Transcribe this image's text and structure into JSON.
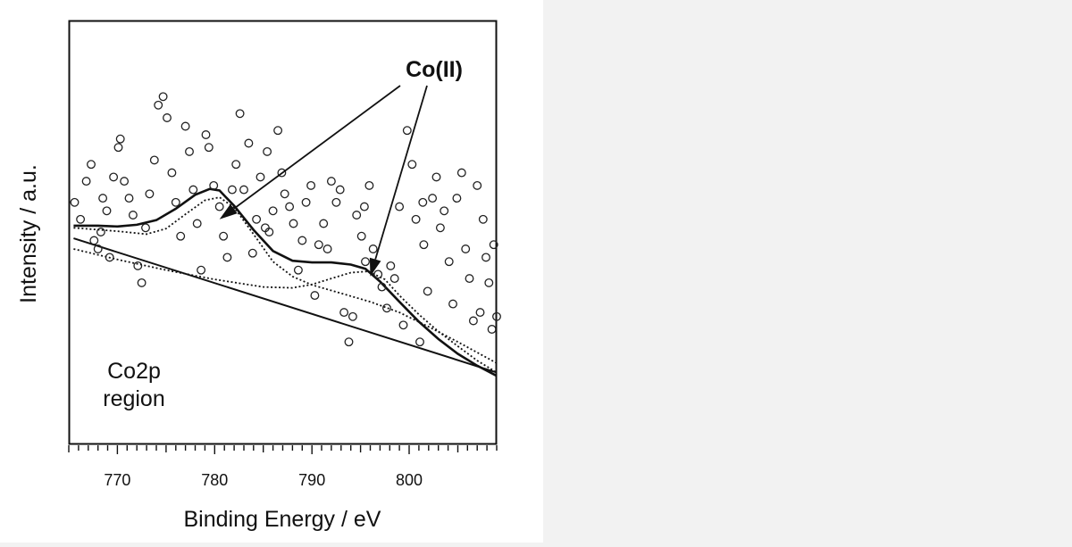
{
  "chart_data": {
    "type": "scatter",
    "title": "",
    "xlabel": "Binding Energy / eV",
    "ylabel": "Intensity / a.u.",
    "xlim": [
      765,
      809
    ],
    "ylim": [
      0,
      100
    ],
    "x_ticks": [
      770,
      780,
      790,
      800
    ],
    "x_tick_labels": [
      "770",
      "780",
      "790",
      "800"
    ],
    "region_label": [
      "Co2p",
      "region"
    ],
    "annotation": {
      "text": "Co(II)",
      "points_to": [
        [
          780.5,
          53
        ],
        [
          796,
          39.5
        ]
      ]
    },
    "series": [
      {
        "name": "measured data",
        "style": "open-circles",
        "points": [
          [
            765.6,
            57
          ],
          [
            766.2,
            53
          ],
          [
            766.8,
            62
          ],
          [
            767.3,
            66
          ],
          [
            767.6,
            48
          ],
          [
            768,
            46
          ],
          [
            768.5,
            58
          ],
          [
            768.9,
            55
          ],
          [
            769.2,
            44
          ],
          [
            769.6,
            63
          ],
          [
            770.1,
            70
          ],
          [
            770.3,
            72
          ],
          [
            770.7,
            62
          ],
          [
            771.2,
            58
          ],
          [
            771.6,
            54
          ],
          [
            772.1,
            42
          ],
          [
            772.5,
            38
          ],
          [
            772.9,
            51
          ],
          [
            773.3,
            59
          ],
          [
            773.8,
            67
          ],
          [
            774.2,
            80
          ],
          [
            774.7,
            82
          ],
          [
            775.1,
            77
          ],
          [
            775.6,
            64
          ],
          [
            776,
            57
          ],
          [
            776.5,
            49
          ],
          [
            777,
            75
          ],
          [
            777.4,
            69
          ],
          [
            777.8,
            60
          ],
          [
            778.2,
            52
          ],
          [
            778.6,
            41
          ],
          [
            779.1,
            73
          ],
          [
            779.4,
            70
          ],
          [
            779.9,
            61
          ],
          [
            780.5,
            56
          ],
          [
            780.9,
            49
          ],
          [
            781.3,
            44
          ],
          [
            781.8,
            60
          ],
          [
            782.2,
            66
          ],
          [
            782.6,
            78
          ],
          [
            783,
            60
          ],
          [
            783.5,
            71
          ],
          [
            783.9,
            45
          ],
          [
            784.3,
            53
          ],
          [
            784.7,
            63
          ],
          [
            785.2,
            51
          ],
          [
            785.6,
            50
          ],
          [
            786,
            55
          ],
          [
            786.5,
            74
          ],
          [
            786.9,
            64
          ],
          [
            787.2,
            59
          ],
          [
            787.7,
            56
          ],
          [
            788.1,
            52
          ],
          [
            788.6,
            41
          ],
          [
            789,
            48
          ],
          [
            789.4,
            57
          ],
          [
            789.9,
            61
          ],
          [
            790.3,
            35
          ],
          [
            790.7,
            47
          ],
          [
            791.2,
            52
          ],
          [
            791.6,
            46
          ],
          [
            792,
            62
          ],
          [
            792.5,
            57
          ],
          [
            792.9,
            60
          ],
          [
            793.3,
            31
          ],
          [
            793.8,
            24
          ],
          [
            794.2,
            30
          ],
          [
            794.6,
            54
          ],
          [
            795.1,
            49
          ],
          [
            795.5,
            43
          ],
          [
            795.9,
            61
          ],
          [
            796.3,
            46
          ],
          [
            796.8,
            40
          ],
          [
            797.2,
            37
          ],
          [
            797.7,
            32
          ],
          [
            798.1,
            42
          ],
          [
            798.5,
            39
          ],
          [
            799,
            56
          ],
          [
            799.4,
            28
          ],
          [
            799.8,
            74
          ],
          [
            800.3,
            66
          ],
          [
            800.7,
            53
          ],
          [
            801.1,
            24
          ],
          [
            801.5,
            47
          ],
          [
            801.9,
            36
          ],
          [
            802.4,
            58
          ],
          [
            802.8,
            63
          ],
          [
            803.2,
            51
          ],
          [
            803.6,
            55
          ],
          [
            804.1,
            43
          ],
          [
            804.5,
            33
          ],
          [
            804.9,
            58
          ],
          [
            805.4,
            64
          ],
          [
            805.8,
            46
          ],
          [
            806.2,
            39
          ],
          [
            806.6,
            29
          ],
          [
            807,
            61
          ],
          [
            807.3,
            31
          ],
          [
            807.6,
            53
          ],
          [
            807.9,
            44
          ],
          [
            808.2,
            38
          ],
          [
            808.5,
            27
          ],
          [
            808.7,
            47
          ],
          [
            809,
            30
          ],
          [
            768.3,
            50
          ],
          [
            785.4,
            69
          ],
          [
            795.4,
            56
          ],
          [
            801.4,
            57
          ]
        ]
      },
      {
        "name": "fitted envelope",
        "style": "solid-thick",
        "points": [
          [
            765.5,
            51.5
          ],
          [
            768,
            51.5
          ],
          [
            770,
            51.3
          ],
          [
            772,
            51.7
          ],
          [
            774,
            52.8
          ],
          [
            776,
            55.5
          ],
          [
            778,
            58.8
          ],
          [
            779.5,
            60.2
          ],
          [
            780.5,
            59.8
          ],
          [
            782,
            56.2
          ],
          [
            784,
            50.5
          ],
          [
            786,
            45.5
          ],
          [
            788,
            43.2
          ],
          [
            790,
            42.8
          ],
          [
            792,
            42.8
          ],
          [
            794,
            42.3
          ],
          [
            795.5,
            41.3
          ],
          [
            797,
            38.3
          ],
          [
            799,
            33.5
          ],
          [
            801,
            28.8
          ],
          [
            803,
            24.7
          ],
          [
            805,
            21.2
          ],
          [
            807,
            18.4
          ],
          [
            809,
            16
          ]
        ]
      },
      {
        "name": "Co(II) component 780 eV",
        "style": "dotted",
        "points": [
          [
            765.5,
            51
          ],
          [
            770,
            50.2
          ],
          [
            773,
            49.5
          ],
          [
            775,
            50.8
          ],
          [
            777,
            54.2
          ],
          [
            779,
            57.5
          ],
          [
            780.5,
            58.2
          ],
          [
            782,
            55.8
          ],
          [
            784,
            49.5
          ],
          [
            786,
            43
          ],
          [
            788,
            39.5
          ],
          [
            790,
            37.5
          ],
          [
            793,
            35.5
          ],
          [
            796,
            33.5
          ],
          [
            799,
            31
          ],
          [
            802,
            27.6
          ],
          [
            805,
            24
          ],
          [
            809,
            19
          ]
        ]
      },
      {
        "name": "Co(II) component 796 eV",
        "style": "dotted",
        "points": [
          [
            765.5,
            46
          ],
          [
            770,
            43.5
          ],
          [
            775,
            41
          ],
          [
            780,
            38.8
          ],
          [
            785,
            37
          ],
          [
            788,
            36.8
          ],
          [
            790,
            37.6
          ],
          [
            792,
            39
          ],
          [
            794,
            40.4
          ],
          [
            795.8,
            40.7
          ],
          [
            797.5,
            38.8
          ],
          [
            799,
            35
          ],
          [
            801,
            30.5
          ],
          [
            803,
            26.5
          ],
          [
            805,
            23
          ],
          [
            807,
            19.6
          ],
          [
            809,
            16.8
          ]
        ]
      },
      {
        "name": "background",
        "style": "solid",
        "points": [
          [
            765.5,
            48.5
          ],
          [
            809,
            16.8
          ]
        ]
      }
    ]
  }
}
